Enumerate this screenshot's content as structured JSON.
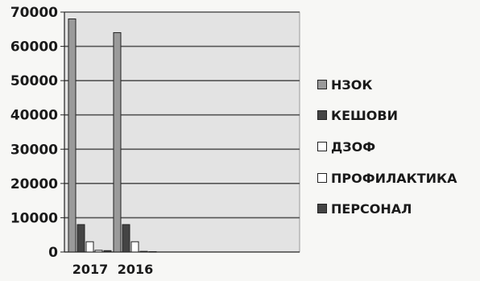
{
  "chart_data": {
    "type": "bar",
    "categories": [
      "2017",
      "2016"
    ],
    "series": [
      {
        "name": "НЗОК",
        "values": [
          68000,
          64000
        ],
        "color": "#9a9a9a"
      },
      {
        "name": "КЕШОВИ",
        "values": [
          8000,
          8000
        ],
        "color": "#444444"
      },
      {
        "name": "ДЗОФ",
        "values": [
          3000,
          3000
        ],
        "color": "#ffffff"
      },
      {
        "name": "ПРОФИЛАКТИКА",
        "values": [
          500,
          200
        ],
        "color": "#ffffff"
      },
      {
        "name": "ПЕРСОНАЛ",
        "values": [
          400,
          100
        ],
        "color": "#444444"
      }
    ],
    "ylim": [
      0,
      70000
    ],
    "yticks": [
      "0",
      "10000",
      "20000",
      "30000",
      "40000",
      "50000",
      "60000",
      "70000"
    ],
    "plot_background": "#e3e3e3",
    "grid": true,
    "legend_position": "right",
    "title": "",
    "xlabel": "",
    "ylabel": ""
  }
}
